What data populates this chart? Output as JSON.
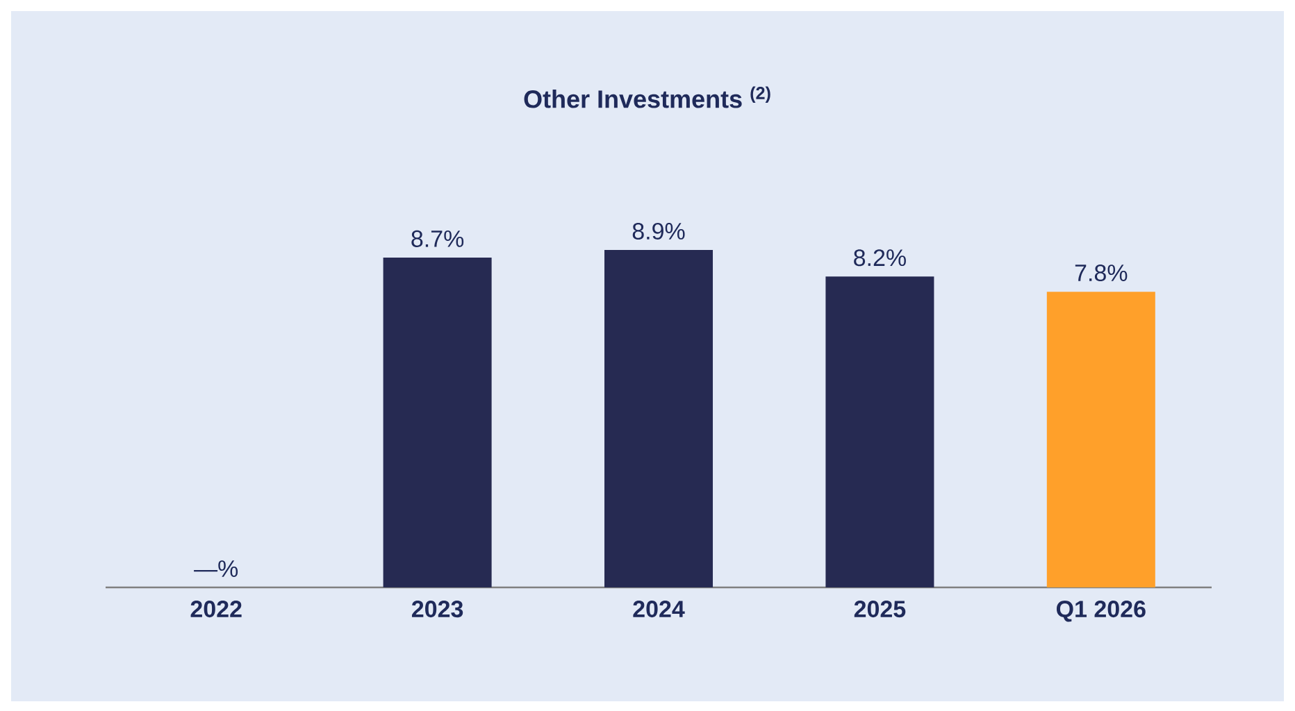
{
  "chart_data": {
    "type": "bar",
    "title": "Other Investments $^{(2)}$",
    "categories": [
      "2022",
      "2023",
      "2024",
      "2025",
      "Q1 2026"
    ],
    "values": [
      0,
      8.7,
      8.9,
      8.2,
      7.8
    ],
    "value_labels": [
      "—%",
      "8.7%",
      "8.9%",
      "8.2%",
      "7.8%"
    ],
    "colors": [
      "#262a52",
      "#262a52",
      "#262a52",
      "#262a52",
      "#ffa02a"
    ],
    "grid": false
  }
}
